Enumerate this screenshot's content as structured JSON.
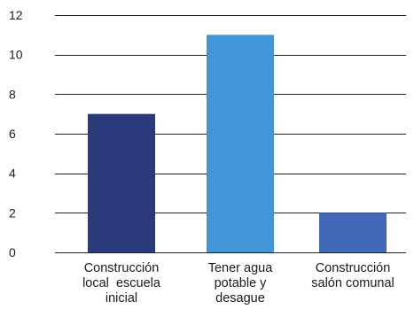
{
  "chart_data": {
    "type": "bar",
    "categories": [
      [
        "Construcción",
        "local  escuela",
        "inicial"
      ],
      [
        "Tener agua",
        "potable y",
        "desague"
      ],
      [
        "Construcción",
        "salón comunal"
      ]
    ],
    "values": [
      7,
      11,
      2
    ],
    "bar_colors": [
      "#2b3a7a",
      "#4295d6",
      "#4268b8"
    ],
    "title": "",
    "xlabel": "",
    "ylabel": "",
    "ylim": [
      0,
      12
    ],
    "yticks": [
      0,
      2,
      4,
      6,
      8,
      10,
      12
    ],
    "grid": true,
    "legend": "none"
  }
}
